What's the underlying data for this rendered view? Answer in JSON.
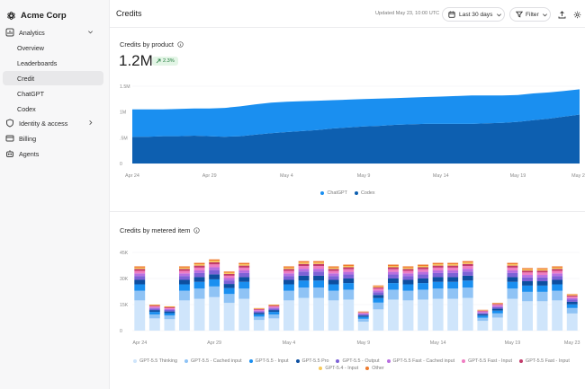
{
  "brand": {
    "name": "Acme Corp",
    "icon": "openai-logo-icon"
  },
  "sidebar": {
    "items": [
      {
        "label": "Analytics",
        "icon": "chart-icon",
        "expanded": true
      },
      {
        "label": "Overview"
      },
      {
        "label": "Leaderboards"
      },
      {
        "label": "Credit",
        "active": true
      },
      {
        "label": "ChatGPT"
      },
      {
        "label": "Codex"
      },
      {
        "label": "Identity & access",
        "icon": "shield-icon"
      },
      {
        "label": "Billing",
        "icon": "credit-card-icon"
      },
      {
        "label": "Agents",
        "icon": "robot-icon"
      }
    ]
  },
  "header": {
    "title": "Credits",
    "updated": "Updated May 23, 10:00 UTC",
    "date_range": "Last 30 days",
    "filter_label": "Filter"
  },
  "credits_by_product": {
    "title": "Credits by product",
    "value": "1.2M",
    "delta": "2.3%"
  },
  "credits_by_item": {
    "title": "Credits by metered item"
  },
  "chart_data": [
    {
      "type": "area",
      "title": "Credits by product",
      "x": [
        "Apr 24",
        "Apr 25",
        "Apr 26",
        "Apr 27",
        "Apr 28",
        "Apr 29",
        "Apr 30",
        "May 1",
        "May 2",
        "May 3",
        "May 4",
        "May 5",
        "May 6",
        "May 7",
        "May 8",
        "May 9",
        "May 10",
        "May 11",
        "May 12",
        "May 13",
        "May 14",
        "May 15",
        "May 16",
        "May 17",
        "May 18",
        "May 19",
        "May 20",
        "May 21",
        "May 22",
        "May 23"
      ],
      "x_tick_labels": [
        "Apr 24",
        "Apr 29",
        "May 4",
        "May 9",
        "May 14",
        "May 19",
        "May 23"
      ],
      "y_tick_labels": [
        "0",
        ".5M",
        "1M",
        "1.5M"
      ],
      "ylim": [
        0,
        1.5
      ],
      "stacked": true,
      "series": [
        {
          "name": "Codex",
          "color": "#0d5fb0",
          "values": [
            0.52,
            0.52,
            0.53,
            0.53,
            0.54,
            0.53,
            0.52,
            0.53,
            0.56,
            0.59,
            0.61,
            0.63,
            0.65,
            0.68,
            0.7,
            0.72,
            0.73,
            0.75,
            0.76,
            0.77,
            0.77,
            0.77,
            0.77,
            0.78,
            0.79,
            0.81,
            0.84,
            0.87,
            0.91,
            0.95
          ]
        },
        {
          "name": "ChatGPT",
          "color": "#1a8ff0",
          "values": [
            0.53,
            0.53,
            0.52,
            0.53,
            0.53,
            0.54,
            0.56,
            0.58,
            0.59,
            0.59,
            0.59,
            0.58,
            0.57,
            0.55,
            0.54,
            0.53,
            0.53,
            0.52,
            0.52,
            0.52,
            0.53,
            0.54,
            0.55,
            0.54,
            0.53,
            0.52,
            0.52,
            0.51,
            0.5,
            0.49
          ]
        }
      ],
      "legend": "bottom-center"
    },
    {
      "type": "bar",
      "title": "Credits by metered item",
      "stacked": true,
      "categories": [
        "Apr 24",
        "Apr 25",
        "Apr 26",
        "Apr 27",
        "Apr 28",
        "Apr 29",
        "Apr 30",
        "May 1",
        "May 2",
        "May 3",
        "May 4",
        "May 5",
        "May 6",
        "May 7",
        "May 8",
        "May 9",
        "May 10",
        "May 11",
        "May 12",
        "May 13",
        "May 14",
        "May 15",
        "May 16",
        "May 17",
        "May 18",
        "May 19",
        "May 20",
        "May 21",
        "May 22",
        "May 23"
      ],
      "x_tick_labels": [
        "Apr 24",
        "Apr 29",
        "May 4",
        "May 9",
        "May 14",
        "May 19",
        "May 23"
      ],
      "y_tick_labels": [
        "0",
        "15K",
        "30K",
        "45K"
      ],
      "ylim": [
        0,
        45
      ],
      "totals": [
        37,
        15,
        14,
        37,
        39,
        41,
        34,
        39,
        13,
        15,
        37,
        40,
        40,
        37,
        38,
        11,
        26,
        38,
        37,
        38,
        39,
        39,
        40,
        12,
        16,
        39,
        36,
        36,
        37,
        21
      ],
      "series": [
        {
          "name": "GPT-5.5 Thinking",
          "color": "#cfe5fb",
          "share": 0.47
        },
        {
          "name": "GPT-5.5 - Cached input",
          "color": "#8fc3f5",
          "share": 0.15
        },
        {
          "name": "GPT-5.5 - Input",
          "color": "#1a8ff0",
          "share": 0.1
        },
        {
          "name": "GPT-5.5 Pro",
          "color": "#0d4fa0",
          "share": 0.07
        },
        {
          "name": "GPT-5.5 - Output",
          "color": "#7d62d6",
          "share": 0.06
        },
        {
          "name": "GPT-5.5 Fast - Cached input",
          "color": "#b86ee0",
          "share": 0.04
        },
        {
          "name": "GPT-5.5 Fast - Input",
          "color": "#ef7dc2",
          "share": 0.04
        },
        {
          "name": "GPT-5.5 Fast - Input",
          "color": "#c23b6a",
          "share": 0.03
        },
        {
          "name": "GPT-5.4 - Input",
          "color": "#f7c95a",
          "share": 0.02
        },
        {
          "name": "Other",
          "color": "#ee7a2e",
          "share": 0.02
        }
      ],
      "legend": "bottom-center"
    }
  ]
}
